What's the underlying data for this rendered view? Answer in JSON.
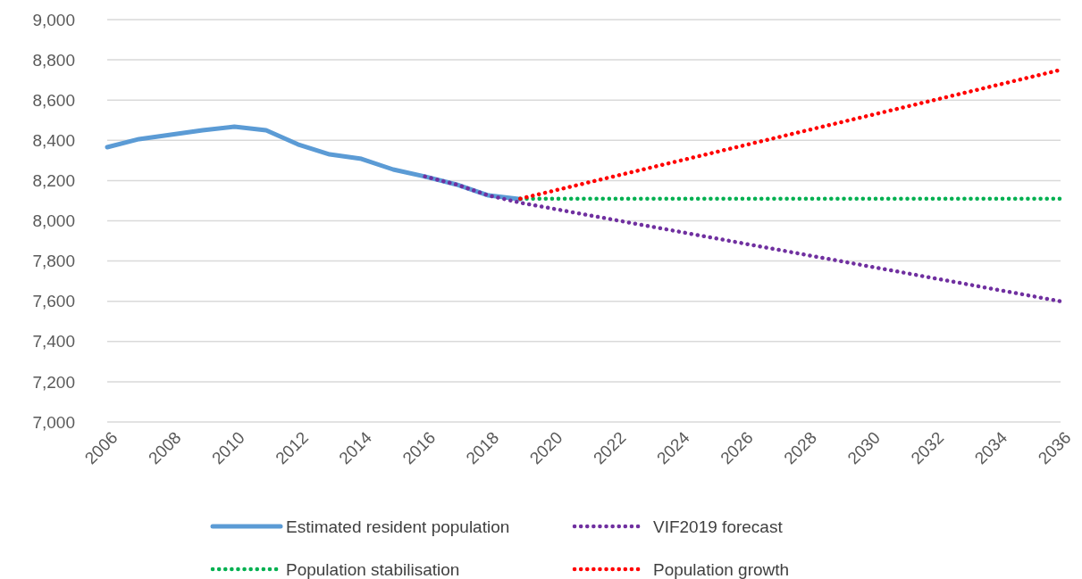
{
  "chart_data": {
    "type": "line",
    "xlim": [
      2006,
      2036
    ],
    "xticks": [
      2006,
      2008,
      2010,
      2012,
      2014,
      2016,
      2018,
      2020,
      2022,
      2024,
      2026,
      2028,
      2030,
      2032,
      2034,
      2036
    ],
    "ylim": [
      7000,
      9000
    ],
    "yticks": [
      {
        "value": 7000,
        "label": "7,000"
      },
      {
        "value": 7200,
        "label": "7,200"
      },
      {
        "value": 7400,
        "label": "7,400"
      },
      {
        "value": 7600,
        "label": "7,600"
      },
      {
        "value": 7800,
        "label": "7,800"
      },
      {
        "value": 8000,
        "label": "8,000"
      },
      {
        "value": 8200,
        "label": "8,200"
      },
      {
        "value": 8400,
        "label": "8,400"
      },
      {
        "value": 8600,
        "label": "8,600"
      },
      {
        "value": 8800,
        "label": "8,800"
      },
      {
        "value": 9000,
        "label": "9,000"
      }
    ],
    "grid": "y",
    "legend": "bottom",
    "marker": "none",
    "series": [
      {
        "name": "Estimated resident population",
        "color": "#5b9bd5",
        "line_style": "solid",
        "x": [
          2006,
          2007,
          2008,
          2009,
          2010,
          2011,
          2012,
          2013,
          2014,
          2015,
          2016,
          2017,
          2018,
          2019
        ],
        "values": [
          8366,
          8406,
          8428,
          8450,
          8468,
          8450,
          8380,
          8330,
          8308,
          8255,
          8220,
          8180,
          8126,
          8108
        ]
      },
      {
        "name": "VIF2019 forecast",
        "color": "#7030a0",
        "line_style": "dotted",
        "x": [
          2016,
          2017,
          2018,
          2019,
          2036
        ],
        "values": [
          8220,
          8180,
          8126,
          8090,
          7600
        ]
      },
      {
        "name": "Population stabilisation",
        "color": "#00b050",
        "line_style": "dotted",
        "x": [
          2019,
          2036
        ],
        "values": [
          8110,
          8110
        ]
      },
      {
        "name": "Population growth",
        "color": "#ff0000",
        "line_style": "dotted",
        "x": [
          2019,
          2036
        ],
        "values": [
          8110,
          8750
        ]
      }
    ]
  }
}
